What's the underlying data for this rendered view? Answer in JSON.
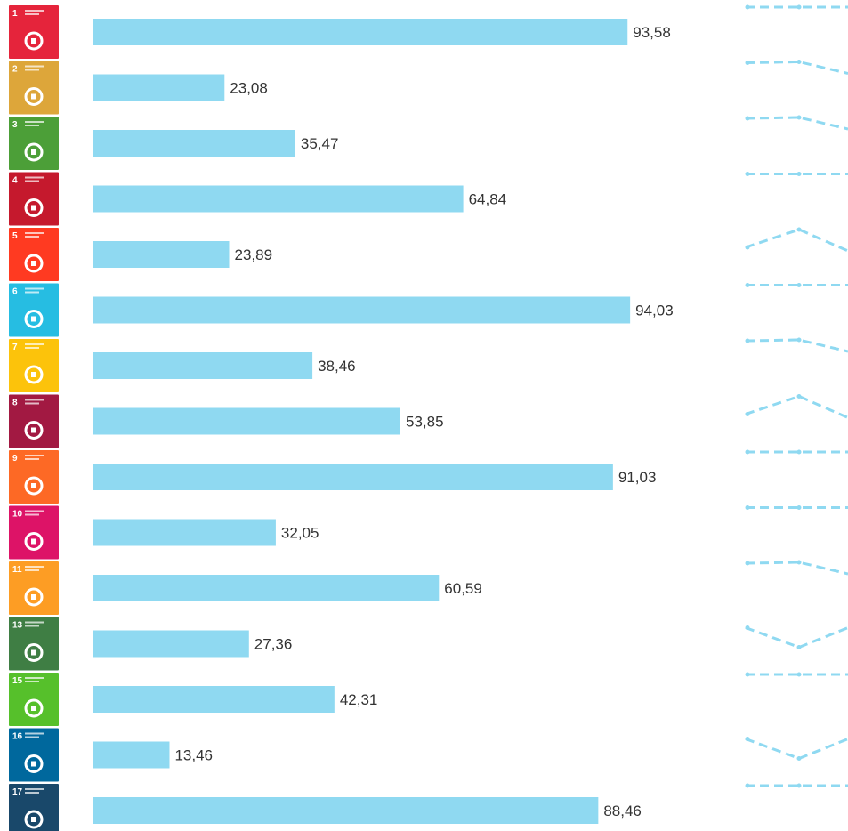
{
  "chart_data": {
    "type": "bar",
    "orientation": "horizontal",
    "categories": [
      "1",
      "2",
      "3",
      "4",
      "5",
      "6",
      "7",
      "8",
      "9",
      "10",
      "11",
      "13",
      "15",
      "16",
      "17"
    ],
    "values": [
      93.58,
      23.08,
      35.47,
      64.84,
      23.89,
      94.03,
      38.46,
      53.85,
      91.03,
      32.05,
      60.59,
      27.36,
      42.31,
      13.46,
      88.46
    ],
    "value_labels": [
      "93,58",
      "23,08",
      "35,47",
      "64,84",
      "23,89",
      "94,03",
      "38,46",
      "53,85",
      "91,03",
      "32,05",
      "60,59",
      "27,36",
      "42,31",
      "13,46",
      "88,46"
    ],
    "xlim": [
      0,
      100
    ],
    "bar_color": "#8fd9f1",
    "grid": false,
    "legend": "none",
    "icon_colors": [
      "#e5243b",
      "#dda63a",
      "#4c9f38",
      "#c5192d",
      "#ff3a21",
      "#26bde2",
      "#fcc30b",
      "#a21942",
      "#fd6925",
      "#dd1367",
      "#fd9d24",
      "#3f7e44",
      "#56c02b",
      "#00689d",
      "#19486a"
    ],
    "icon_names": [
      "no-poverty-icon",
      "zero-hunger-icon",
      "good-health-icon",
      "quality-education-icon",
      "gender-equality-icon",
      "clean-water-icon",
      "clean-energy-icon",
      "decent-work-icon",
      "industry-innovation-icon",
      "reduced-inequalities-icon",
      "sustainable-cities-icon",
      "climate-action-icon",
      "life-on-land-icon",
      "peace-justice-icon",
      "partnerships-icon"
    ],
    "trend_shape": [
      "flat",
      "down",
      "down",
      "flat",
      "peak",
      "flat",
      "down",
      "peak",
      "flat",
      "flat",
      "down",
      "valley",
      "flat",
      "valley",
      "flat"
    ],
    "trend_color": "#8fd9f1"
  }
}
